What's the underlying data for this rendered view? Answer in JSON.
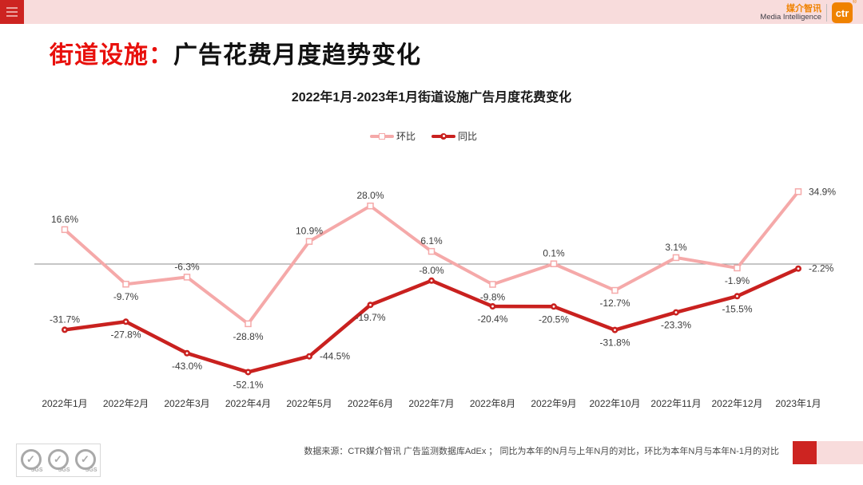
{
  "header": {
    "brand": {
      "name_cn": "媒介智讯",
      "name_en": "Media Intelligence",
      "logo_text": "ctr",
      "registered_mark": "®"
    }
  },
  "title": {
    "highlight": "街道设施：",
    "main": "广告花费月度趋势变化"
  },
  "chart_data": {
    "type": "line",
    "title": "2022年1月-2023年1月街道设施广告月度花费变化",
    "categories": [
      "2022年1月",
      "2022年2月",
      "2022年3月",
      "2022年4月",
      "2022年5月",
      "2022年6月",
      "2022年7月",
      "2022年8月",
      "2022年9月",
      "2022年10月",
      "2022年11月",
      "2022年12月",
      "2023年1月"
    ],
    "series": [
      {
        "name": "环比",
        "color": "#F5A9A9",
        "marker": "open-square",
        "values": [
          16.6,
          -9.7,
          -6.3,
          -28.8,
          10.9,
          28.0,
          6.1,
          -9.8,
          0.1,
          -12.7,
          3.1,
          -1.9,
          34.9
        ],
        "label_positions": [
          "above",
          "below",
          "above",
          "below",
          "above",
          "above",
          "above",
          "below",
          "above",
          "below",
          "above",
          "below",
          "right"
        ]
      },
      {
        "name": "同比",
        "color": "#C9211F",
        "marker": "dot",
        "values": [
          -31.7,
          -27.8,
          -43.0,
          -52.1,
          -44.5,
          -19.7,
          -8.0,
          -20.4,
          -20.5,
          -31.8,
          -23.3,
          -15.5,
          -2.2
        ],
        "label_positions": [
          "above",
          "below",
          "below",
          "below",
          "right",
          "below",
          "above",
          "below",
          "below",
          "below",
          "below",
          "below",
          "right"
        ]
      }
    ],
    "value_suffix": "%",
    "ylim": [
      -60,
      45
    ],
    "zero_line": true,
    "grid": false,
    "legend_position": "top-center"
  },
  "footer": {
    "source_text": "数据来源：CTR媒介智讯 广告监测数据库AdEx ； 同比为本年的N月与上年N月的对比，环比为本年N月与本年N-1月的对比",
    "sgs_label": "SGS"
  },
  "colors": {
    "top_bar_pink": "#F8DCDC",
    "accent_red_square": "#CD2421",
    "title_red": "#E8100C",
    "series_mom_pink": "#F5A9A9",
    "series_yoy_red": "#C9211F",
    "brand_orange": "#EF8200",
    "zero_line_gray": "#8C8C8C"
  }
}
